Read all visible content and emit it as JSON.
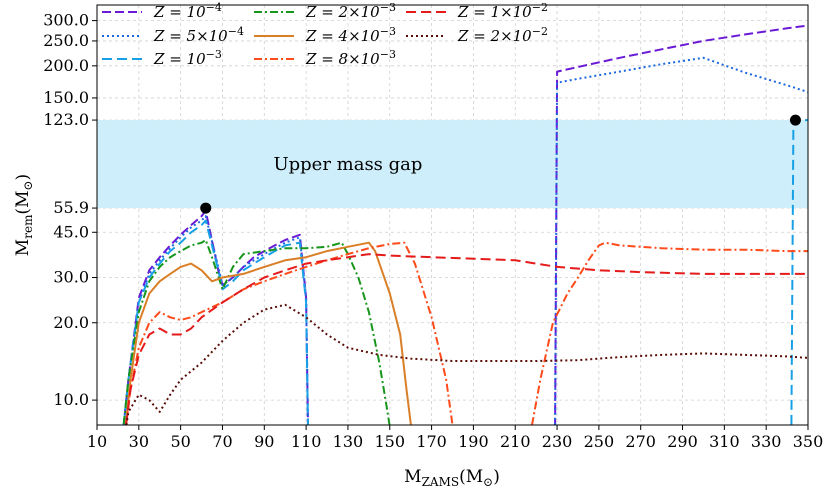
{
  "chart_data": {
    "type": "line",
    "xlabel": "M",
    "xlabel_sub": "ZAMS",
    "xlabel_unit": "(M",
    "xlabel_unit_close": ")",
    "ylabel": "M",
    "ylabel_sub": "rem",
    "ylabel_unit": "(M",
    "ylabel_unit_close": ")",
    "sun_symbol": "⊙",
    "xlim": [
      10,
      350
    ],
    "ylim": [
      8.0,
      345.0
    ],
    "yscale": "log",
    "x_ticks": [
      "10",
      "30",
      "50",
      "70",
      "90",
      "110",
      "130",
      "150",
      "170",
      "190",
      "210",
      "230",
      "250",
      "270",
      "290",
      "310",
      "330",
      "350"
    ],
    "y_ticks": [
      {
        "value": 10,
        "label": "10.0"
      },
      {
        "value": 20,
        "label": "20.0"
      },
      {
        "value": 30,
        "label": "30.0"
      },
      {
        "value": 45,
        "label": "45.0"
      },
      {
        "value": 55.9,
        "label": "55.9"
      },
      {
        "value": 123,
        "label": "123.0"
      },
      {
        "value": 150,
        "label": "150.0"
      },
      {
        "value": 200,
        "label": "200.0"
      },
      {
        "value": 250,
        "label": "250.0"
      },
      {
        "value": 300,
        "label": "300.0"
      }
    ],
    "gap_band": {
      "low": 55.9,
      "high": 123.0,
      "color": "#cdeefa",
      "label": "Upper mass gap"
    },
    "markers": [
      {
        "x": 62,
        "y": 55.9
      },
      {
        "x": 344,
        "y": 123.0
      }
    ],
    "series": [
      {
        "name": "Z=1e-4",
        "legend": {
          "pre": "Z = 10",
          "exp": "−4"
        },
        "color": "#6a1ad6",
        "dash": "9,4",
        "points": [
          [
            22,
            7
          ],
          [
            25,
            12
          ],
          [
            30,
            25
          ],
          [
            35,
            32
          ],
          [
            40,
            36
          ],
          [
            45,
            40
          ],
          [
            50,
            44
          ],
          [
            55,
            48
          ],
          [
            60,
            52
          ],
          [
            62,
            54.5
          ],
          [
            68,
            32
          ],
          [
            70,
            28
          ],
          [
            75,
            30
          ],
          [
            80,
            33
          ],
          [
            85,
            36
          ],
          [
            90,
            38
          ],
          [
            95,
            40
          ],
          [
            100,
            42
          ],
          [
            107,
            44
          ],
          [
            110,
            25
          ],
          [
            111,
            7
          ],
          [
            null,
            null
          ],
          [
            229,
            7
          ],
          [
            230,
            190
          ],
          [
            240,
            198
          ],
          [
            260,
            215
          ],
          [
            280,
            232
          ],
          [
            300,
            250
          ],
          [
            320,
            265
          ],
          [
            340,
            280
          ],
          [
            350,
            287
          ]
        ]
      },
      {
        "name": "Z=5e-4",
        "legend": {
          "pre": "Z = 5×10",
          "exp": "−4"
        },
        "color": "#1c66e0",
        "dash": "2,3",
        "points": [
          [
            22,
            7
          ],
          [
            25,
            12
          ],
          [
            30,
            24
          ],
          [
            35,
            31
          ],
          [
            40,
            35
          ],
          [
            45,
            39
          ],
          [
            50,
            43
          ],
          [
            55,
            47
          ],
          [
            60,
            50
          ],
          [
            62,
            52
          ],
          [
            68,
            33
          ],
          [
            70,
            28
          ],
          [
            75,
            30
          ],
          [
            80,
            33
          ],
          [
            85,
            35
          ],
          [
            90,
            37
          ],
          [
            95,
            39
          ],
          [
            100,
            41
          ],
          [
            107,
            43
          ],
          [
            110,
            25
          ],
          [
            111,
            7
          ],
          [
            null,
            null
          ],
          [
            229,
            7
          ],
          [
            230,
            172
          ],
          [
            240,
            178
          ],
          [
            260,
            190
          ],
          [
            280,
            203
          ],
          [
            300,
            215
          ],
          [
            320,
            188
          ],
          [
            340,
            168
          ],
          [
            350,
            158
          ]
        ]
      },
      {
        "name": "Z=1e-3",
        "legend": {
          "pre": "Z = 10",
          "exp": "−3"
        },
        "color": "#18a0e6",
        "dash": "10,5",
        "points": [
          [
            22,
            7
          ],
          [
            25,
            12
          ],
          [
            30,
            24
          ],
          [
            35,
            30
          ],
          [
            40,
            34
          ],
          [
            45,
            38
          ],
          [
            50,
            41
          ],
          [
            55,
            45
          ],
          [
            60,
            48
          ],
          [
            62,
            50
          ],
          [
            68,
            32
          ],
          [
            70,
            27
          ],
          [
            75,
            29
          ],
          [
            80,
            32
          ],
          [
            85,
            34
          ],
          [
            90,
            36
          ],
          [
            95,
            38
          ],
          [
            100,
            40
          ],
          [
            107,
            41
          ],
          [
            110,
            24
          ],
          [
            111,
            7
          ],
          [
            null,
            null
          ],
          [
            342,
            7
          ],
          [
            343,
            120
          ],
          [
            344,
            123
          ],
          [
            350,
            123
          ]
        ]
      },
      {
        "name": "Z=2e-3",
        "legend": {
          "pre": "Z = 2×10",
          "exp": "−3"
        },
        "color": "#16961a",
        "dash": "8,3,2,3",
        "points": [
          [
            22,
            7
          ],
          [
            25,
            12
          ],
          [
            30,
            22
          ],
          [
            35,
            29
          ],
          [
            40,
            33
          ],
          [
            45,
            36
          ],
          [
            50,
            38
          ],
          [
            55,
            40
          ],
          [
            60,
            41
          ],
          [
            62,
            42
          ],
          [
            65,
            36
          ],
          [
            70,
            27
          ],
          [
            75,
            33
          ],
          [
            80,
            37
          ],
          [
            90,
            38
          ],
          [
            100,
            39
          ],
          [
            110,
            39
          ],
          [
            120,
            39.5
          ],
          [
            127,
            41
          ],
          [
            130,
            37
          ],
          [
            135,
            30
          ],
          [
            140,
            22
          ],
          [
            145,
            14
          ],
          [
            148,
            10
          ],
          [
            151,
            7
          ]
        ]
      },
      {
        "name": "Z=4e-3",
        "legend": {
          "pre": "Z = 4×10",
          "exp": "−3"
        },
        "color": "#d97f27",
        "dash": "",
        "points": [
          [
            23,
            7
          ],
          [
            26,
            12
          ],
          [
            30,
            20
          ],
          [
            35,
            26
          ],
          [
            40,
            29
          ],
          [
            45,
            31
          ],
          [
            50,
            33
          ],
          [
            55,
            34
          ],
          [
            60,
            32
          ],
          [
            65,
            29
          ],
          [
            70,
            30
          ],
          [
            80,
            31
          ],
          [
            90,
            33
          ],
          [
            100,
            35
          ],
          [
            110,
            36
          ],
          [
            120,
            38
          ],
          [
            130,
            39.5
          ],
          [
            140,
            41
          ],
          [
            143,
            38
          ],
          [
            150,
            26
          ],
          [
            155,
            18
          ],
          [
            158,
            11
          ],
          [
            161,
            7
          ]
        ]
      },
      {
        "name": "Z=8e-3",
        "legend": {
          "pre": "Z = 8×10",
          "exp": "−3"
        },
        "color": "#ff4a1a",
        "dash": "8,3,2,3",
        "points": [
          [
            23,
            7
          ],
          [
            26,
            11
          ],
          [
            30,
            16
          ],
          [
            35,
            20
          ],
          [
            40,
            22
          ],
          [
            45,
            21
          ],
          [
            50,
            20.5
          ],
          [
            55,
            21
          ],
          [
            60,
            22
          ],
          [
            70,
            24
          ],
          [
            80,
            27
          ],
          [
            90,
            29
          ],
          [
            100,
            31
          ],
          [
            110,
            33
          ],
          [
            120,
            35
          ],
          [
            130,
            37
          ],
          [
            140,
            39
          ],
          [
            150,
            40.5
          ],
          [
            157,
            41
          ],
          [
            162,
            34
          ],
          [
            170,
            21
          ],
          [
            177,
            12
          ],
          [
            180,
            8
          ],
          [
            null,
            null
          ],
          [
            218,
            8
          ],
          [
            222,
            12
          ],
          [
            228,
            20
          ],
          [
            235,
            26
          ],
          [
            240,
            30
          ],
          [
            245,
            35
          ],
          [
            250,
            40
          ],
          [
            253,
            41
          ],
          [
            260,
            40
          ],
          [
            280,
            39
          ],
          [
            300,
            38.5
          ],
          [
            320,
            38.5
          ],
          [
            340,
            38
          ],
          [
            350,
            38
          ]
        ]
      },
      {
        "name": "Z=1e-2",
        "legend": {
          "pre": "Z = 1×10",
          "exp": "−2"
        },
        "color": "#e51a1a",
        "dash": "10,5",
        "points": [
          [
            23,
            7
          ],
          [
            26,
            11
          ],
          [
            30,
            15
          ],
          [
            35,
            18
          ],
          [
            40,
            19
          ],
          [
            45,
            18
          ],
          [
            50,
            18
          ],
          [
            55,
            19
          ],
          [
            60,
            21
          ],
          [
            70,
            24
          ],
          [
            80,
            27
          ],
          [
            90,
            30
          ],
          [
            100,
            32
          ],
          [
            110,
            34
          ],
          [
            120,
            35
          ],
          [
            130,
            36
          ],
          [
            140,
            37
          ],
          [
            150,
            36.5
          ],
          [
            170,
            36
          ],
          [
            190,
            35.5
          ],
          [
            210,
            35
          ],
          [
            230,
            33
          ],
          [
            250,
            32
          ],
          [
            270,
            31.5
          ],
          [
            300,
            31
          ],
          [
            330,
            31
          ],
          [
            350,
            31
          ]
        ]
      },
      {
        "name": "Z=2e-2",
        "legend": {
          "pre": "Z = 2×10",
          "exp": "−2"
        },
        "color": "#5a0d06",
        "dash": "2,3",
        "points": [
          [
            23,
            7
          ],
          [
            25,
            9
          ],
          [
            30,
            10.5
          ],
          [
            35,
            10
          ],
          [
            40,
            9
          ],
          [
            45,
            10.5
          ],
          [
            50,
            12
          ],
          [
            60,
            14
          ],
          [
            70,
            17
          ],
          [
            80,
            20
          ],
          [
            90,
            22.5
          ],
          [
            100,
            23.5
          ],
          [
            110,
            21
          ],
          [
            120,
            18
          ],
          [
            130,
            16
          ],
          [
            145,
            15
          ],
          [
            160,
            14.5
          ],
          [
            180,
            14.2
          ],
          [
            200,
            14.2
          ],
          [
            220,
            14.2
          ],
          [
            240,
            14.3
          ],
          [
            260,
            14.7
          ],
          [
            280,
            15
          ],
          [
            300,
            15.2
          ],
          [
            320,
            15
          ],
          [
            340,
            14.8
          ],
          [
            350,
            14.6
          ]
        ]
      }
    ]
  }
}
